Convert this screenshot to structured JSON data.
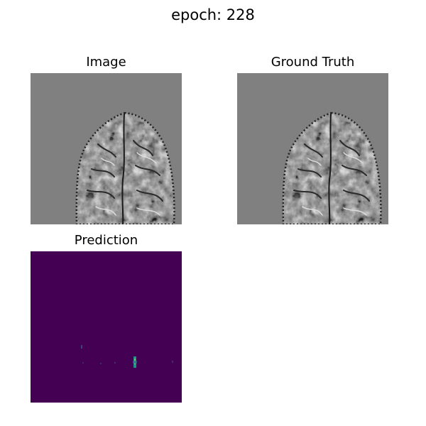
{
  "figure": {
    "title": "epoch: 228"
  },
  "panels": [
    {
      "title": "Image",
      "kind": "grayscale-mri-slice"
    },
    {
      "title": "Ground Truth",
      "kind": "grayscale-mri-slice"
    },
    {
      "title": "Prediction",
      "kind": "heatmap"
    }
  ],
  "colors": {
    "background": "#ffffff",
    "mri_background": "#808080",
    "heatmap_low": "#440154",
    "heatmap_mid": "#21918c",
    "heatmap_high": "#5ec962"
  }
}
